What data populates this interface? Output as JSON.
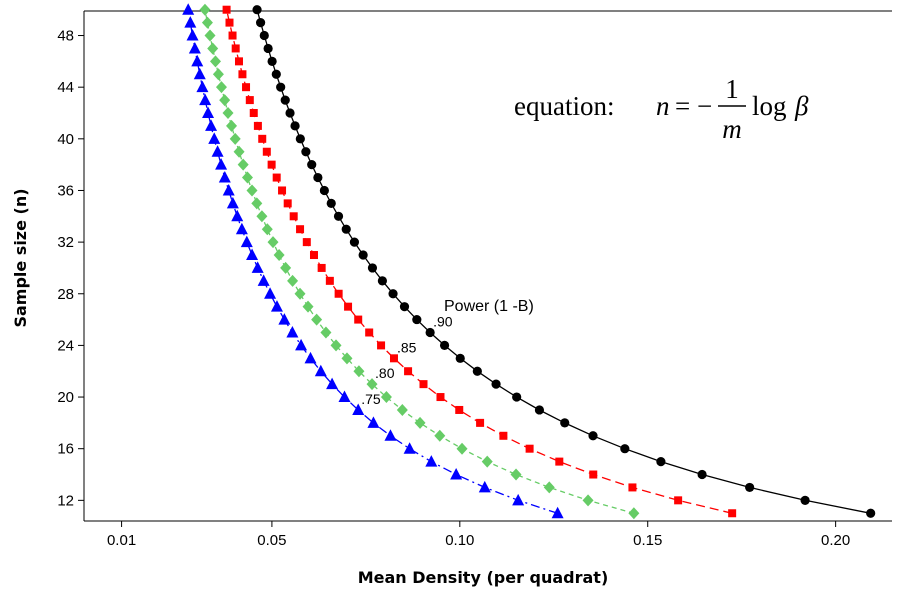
{
  "chart_data": {
    "type": "line",
    "xlabel": "Mean Density (per quadrat)",
    "ylabel": "Sample size (n)",
    "xlim": [
      0.0,
      0.215
    ],
    "ylim": [
      10.4,
      49.9
    ],
    "xticks": [
      0.01,
      0.05,
      0.1,
      0.15,
      0.2
    ],
    "xtick_labels": [
      "0.01",
      "0.05",
      "0.10",
      "0.15",
      "0.20"
    ],
    "yticks": [
      12,
      16,
      20,
      24,
      28,
      32,
      36,
      40,
      44,
      48
    ],
    "ytick_labels": [
      "12",
      "16",
      "20",
      "24",
      "28",
      "32",
      "36",
      "40",
      "44",
      "48"
    ],
    "grid": false,
    "legend": "none",
    "n_range": [
      11,
      50
    ],
    "series": [
      {
        "name": ".90",
        "beta": 0.1,
        "color": "#000000",
        "marker": "circle",
        "dash": "solid",
        "label_n": 25
      },
      {
        "name": ".85",
        "beta": 0.15,
        "color": "#ff0000",
        "marker": "square",
        "dash": "long-dash",
        "label_n": 23
      },
      {
        "name": ".80",
        "beta": 0.2,
        "color": "#66cc66",
        "marker": "diamond",
        "dash": "short-dash",
        "label_n": 21
      },
      {
        "name": ".75",
        "beta": 0.25,
        "color": "#0000ff",
        "marker": "triangle",
        "dash": "dash-dot",
        "label_n": 19
      }
    ],
    "annotations": {
      "power_title": "Power (1 -B)",
      "equation_prefix": "equation:",
      "equation_n": "n",
      "equation_eq": "=",
      "equation_minus": "−",
      "equation_num": "1",
      "equation_den": "m",
      "equation_log": "log",
      "equation_beta": "β"
    }
  }
}
